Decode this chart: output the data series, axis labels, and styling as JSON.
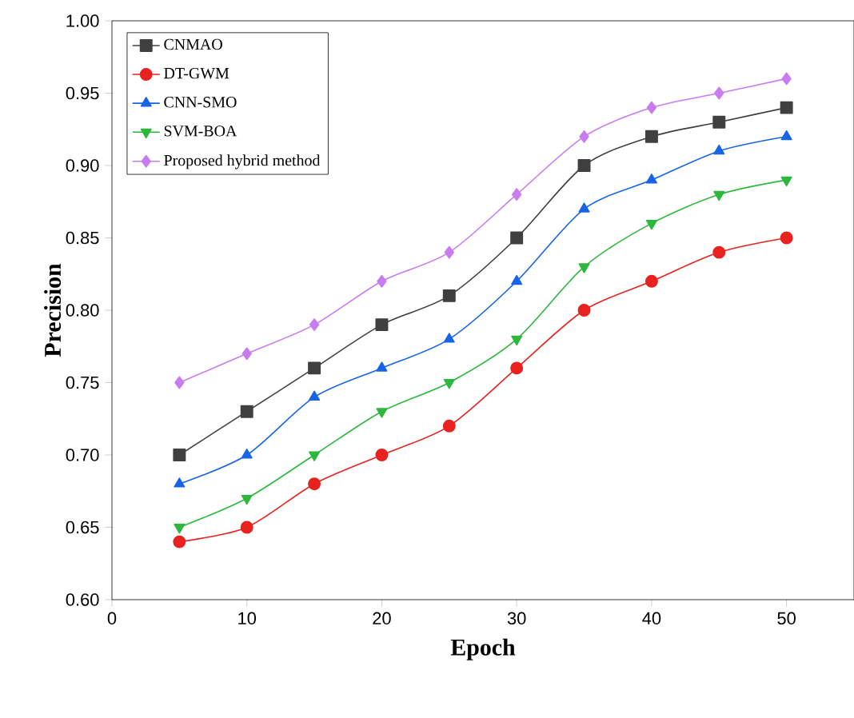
{
  "chart_data": {
    "type": "line",
    "xlabel": "Epoch",
    "ylabel": "Precision",
    "x": [
      5,
      10,
      15,
      20,
      25,
      30,
      35,
      40,
      45,
      50
    ],
    "xlim": [
      0,
      55
    ],
    "xticks": [
      0,
      10,
      20,
      30,
      40,
      50
    ],
    "ylim": [
      0.6,
      1.0
    ],
    "yticks": [
      {
        "value": 0.6,
        "label": "0.60"
      },
      {
        "value": 0.65,
        "label": "0.65"
      },
      {
        "value": 0.7,
        "label": "0.70"
      },
      {
        "value": 0.75,
        "label": "0.75"
      },
      {
        "value": 0.8,
        "label": "0.80"
      },
      {
        "value": 0.85,
        "label": "0.85"
      },
      {
        "value": 0.9,
        "label": "0.90"
      },
      {
        "value": 0.95,
        "label": "0.95"
      },
      {
        "value": 1.0,
        "label": "1.00"
      }
    ],
    "legend": "top left",
    "line_style": "solid",
    "series": [
      {
        "name": "CNMAO",
        "color": "#404040",
        "marker": "square",
        "values": [
          0.7,
          0.73,
          0.76,
          0.79,
          0.81,
          0.85,
          0.9,
          0.92,
          0.93,
          0.94
        ]
      },
      {
        "name": "DT-GWM",
        "color": "#e8221e",
        "marker": "circle",
        "values": [
          0.64,
          0.65,
          0.68,
          0.7,
          0.72,
          0.76,
          0.8,
          0.82,
          0.84,
          0.85
        ]
      },
      {
        "name": "CNN-SMO",
        "color": "#1764e8",
        "marker": "triangle",
        "values": [
          0.68,
          0.7,
          0.74,
          0.76,
          0.78,
          0.82,
          0.87,
          0.89,
          0.91,
          0.92
        ]
      },
      {
        "name": "SVM-BOA",
        "color": "#2db83d",
        "marker": "triangle-down",
        "values": [
          0.65,
          0.67,
          0.7,
          0.73,
          0.75,
          0.78,
          0.83,
          0.86,
          0.88,
          0.89
        ]
      },
      {
        "name": "Proposed hybrid method",
        "color": "#c77cf0",
        "marker": "diamond",
        "values": [
          0.75,
          0.77,
          0.79,
          0.82,
          0.84,
          0.88,
          0.92,
          0.94,
          0.95,
          0.96
        ]
      }
    ]
  }
}
